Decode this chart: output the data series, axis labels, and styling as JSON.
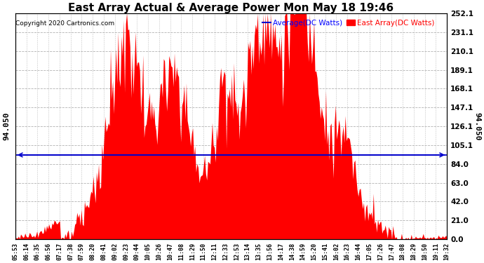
{
  "title": "East Array Actual & Average Power Mon May 18 19:46",
  "copyright": "Copyright 2020 Cartronics.com",
  "legend_average": "Average(DC Watts)",
  "legend_east": "East Array(DC Watts)",
  "average_value": 94.05,
  "y_right_ticks": [
    0.0,
    21.0,
    42.0,
    63.0,
    84.0,
    105.1,
    126.1,
    147.1,
    168.1,
    189.1,
    210.1,
    231.1,
    252.1
  ],
  "ylim": [
    0,
    252.1
  ],
  "background_color": "#ffffff",
  "plot_bg_color": "#ffffff",
  "grid_color": "#aaaaaa",
  "bar_color": "#ff0000",
  "average_line_color": "#0000cc",
  "title_fontsize": 11,
  "x_labels": [
    "05:53",
    "06:14",
    "06:35",
    "06:56",
    "07:17",
    "07:38",
    "07:59",
    "08:20",
    "08:41",
    "09:02",
    "09:23",
    "09:44",
    "10:05",
    "10:26",
    "10:47",
    "11:08",
    "11:29",
    "11:50",
    "12:11",
    "12:33",
    "12:53",
    "13:14",
    "13:35",
    "13:56",
    "14:17",
    "14:38",
    "14:59",
    "15:20",
    "15:41",
    "16:02",
    "16:23",
    "16:44",
    "17:05",
    "17:26",
    "17:47",
    "18:08",
    "18:29",
    "18:50",
    "19:11",
    "19:32"
  ]
}
